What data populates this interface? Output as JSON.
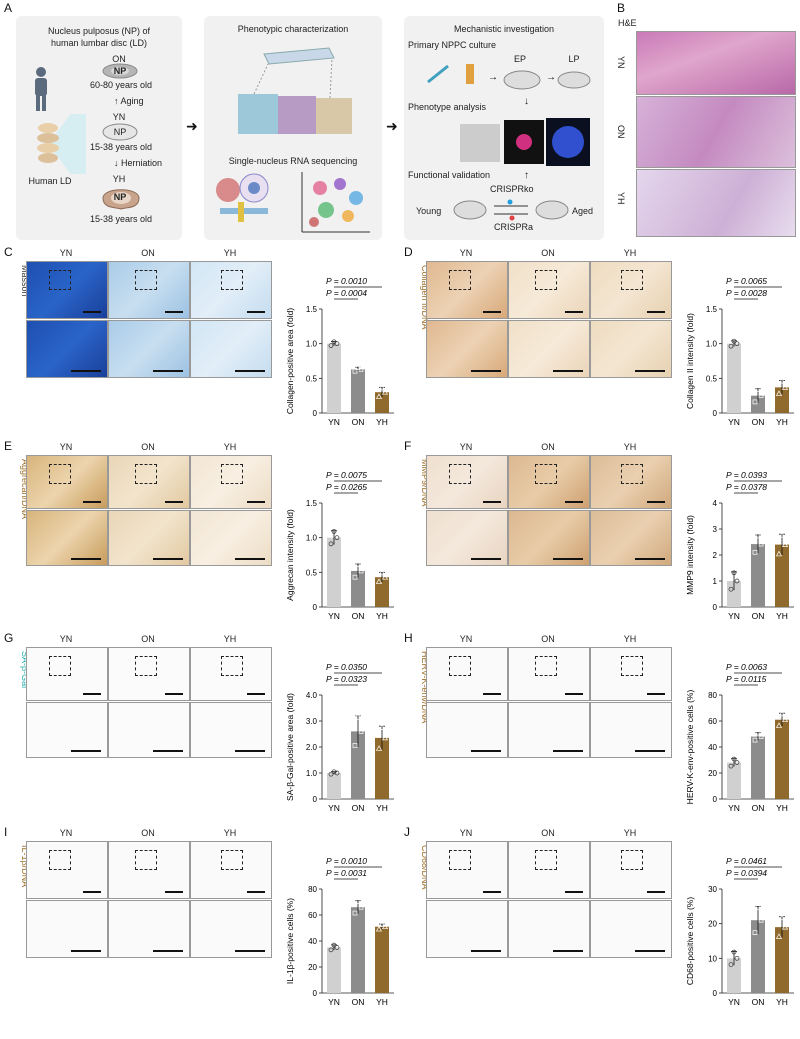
{
  "panel_letters": [
    "A",
    "B",
    "C",
    "D",
    "E",
    "F",
    "G",
    "H",
    "I",
    "J"
  ],
  "schema": {
    "box1_title": [
      "Nucleus pulposus (NP) of",
      "human lumbar disc (LD)"
    ],
    "human_ld": "Human LD",
    "on": "ON",
    "np": "NP",
    "yn": "YN",
    "yh": "YH",
    "aging": "Aging",
    "herniation": "Herniation",
    "age_old": "60-80 years old",
    "age_young": "15-38 years old",
    "box2_title": "Phenotypic characterization",
    "snrna": "Single-nucleus RNA sequencing",
    "box3_title": "Mechanistic investigation",
    "primary": "Primary NPPC culture",
    "ep": "EP",
    "lp": "LP",
    "phenotype": "Phenotype analysis",
    "functional": "Functional validation",
    "crisprko": "CRISPRko",
    "crispra": "CRISPRa",
    "young": "Young",
    "aged": "Aged"
  },
  "he": {
    "title": "H&E",
    "rows": [
      "YN",
      "ON",
      "YH"
    ]
  },
  "groups": [
    "YN",
    "ON",
    "YH"
  ],
  "panels": [
    {
      "id": "C",
      "stain": "Masson",
      "ylabel": "Collagen-positive area (fold)",
      "p1": "P = 0.0010",
      "p2": "P = 0.0004"
    },
    {
      "id": "D",
      "stain": "Collagen II/DNA",
      "ylabel": "Collagen II intensity (fold)",
      "p1": "P = 0.0065",
      "p2": "P = 0.0028"
    },
    {
      "id": "E",
      "stain": "Aggrecan/DNA",
      "ylabel": "Aggrecan intensity (fold)",
      "p1": "P = 0.0075",
      "p2": "P = 0.0265"
    },
    {
      "id": "F",
      "stain": "MMP9/DNA",
      "ylabel": "MMP9 intensity (fold)",
      "p1": "P = 0.0393",
      "p2": "P = 0.0378"
    },
    {
      "id": "G",
      "stain": "SA-β-Gal",
      "ylabel": "SA-β-Gal-positive area (fold)",
      "p1": "P = 0.0350",
      "p2": "P = 0.0323"
    },
    {
      "id": "H",
      "stain": "HERV-K-env/DNA",
      "ylabel": "HERV-K-env-positive cells (%)",
      "p1": "P = 0.0063",
      "p2": "P = 0.0115"
    },
    {
      "id": "I",
      "stain": "IL-1β/DNA",
      "ylabel": "IL-1β-positive cells (%)",
      "p1": "P = 0.0010",
      "p2": "P = 0.0031"
    },
    {
      "id": "J",
      "stain": "CD68/DNA",
      "ylabel": "CD68-positive cells (%)",
      "p1": "P = 0.0461",
      "p2": "P = 0.0394"
    }
  ],
  "chart_data": [
    {
      "type": "bar",
      "categories": [
        "YN",
        "ON",
        "YH"
      ],
      "values": [
        1.0,
        0.63,
        0.3
      ],
      "errors": [
        0.03,
        0.03,
        0.07
      ],
      "ylabel": "Collagen-positive area (fold)",
      "ylim": [
        0,
        1.5
      ],
      "yticks": [
        0,
        0.5,
        1.0,
        1.5
      ],
      "ytick_labels": [
        "0",
        "0.5",
        "1.0",
        "1.5"
      ],
      "colors": [
        "#d0d0d0",
        "#8c8c8c",
        "#8f6a2c"
      ]
    },
    {
      "type": "bar",
      "categories": [
        "YN",
        "ON",
        "YH"
      ],
      "values": [
        1.0,
        0.25,
        0.37
      ],
      "errors": [
        0.04,
        0.1,
        0.1
      ],
      "ylabel": "Collagen II intensity (fold)",
      "ylim": [
        0,
        1.5
      ],
      "yticks": [
        0,
        0.5,
        1.0,
        1.5
      ],
      "ytick_labels": [
        "0",
        "0.5",
        "1.0",
        "1.5"
      ],
      "colors": [
        "#d0d0d0",
        "#8c8c8c",
        "#8f6a2c"
      ]
    },
    {
      "type": "bar",
      "categories": [
        "YN",
        "ON",
        "YH"
      ],
      "values": [
        1.0,
        0.52,
        0.43
      ],
      "errors": [
        0.1,
        0.1,
        0.07
      ],
      "ylabel": "Aggrecan intensity (fold)",
      "ylim": [
        0,
        1.5
      ],
      "yticks": [
        0,
        0.5,
        1.0,
        1.5
      ],
      "ytick_labels": [
        "0",
        "0.5",
        "1.0",
        "1.5"
      ],
      "colors": [
        "#d0d0d0",
        "#8c8c8c",
        "#8f6a2c"
      ]
    },
    {
      "type": "bar",
      "categories": [
        "YN",
        "ON",
        "YH"
      ],
      "values": [
        1.0,
        2.42,
        2.4
      ],
      "errors": [
        0.35,
        0.35,
        0.4
      ],
      "ylabel": "MMP9 intensity (fold)",
      "ylim": [
        0,
        4
      ],
      "yticks": [
        0,
        1,
        2,
        3,
        4
      ],
      "ytick_labels": [
        "0",
        "1",
        "2",
        "3",
        "4"
      ],
      "colors": [
        "#d0d0d0",
        "#8c8c8c",
        "#8f6a2c"
      ]
    },
    {
      "type": "bar",
      "categories": [
        "YN",
        "ON",
        "YH"
      ],
      "values": [
        1.0,
        2.6,
        2.35
      ],
      "errors": [
        0.05,
        0.6,
        0.45
      ],
      "ylabel": "SA-β-Gal-positive area (fold)",
      "ylim": [
        0,
        4
      ],
      "yticks": [
        0,
        1,
        2,
        3,
        4
      ],
      "ytick_labels": [
        "0",
        "1.0",
        "2.0",
        "3.0",
        "4.0"
      ],
      "colors": [
        "#d0d0d0",
        "#8c8c8c",
        "#8f6a2c"
      ]
    },
    {
      "type": "bar",
      "categories": [
        "YN",
        "ON",
        "YH"
      ],
      "values": [
        28,
        48,
        61
      ],
      "errors": [
        3,
        3,
        5
      ],
      "ylabel": "HERV-K-env-positive cells (%)",
      "ylim": [
        0,
        80
      ],
      "yticks": [
        0,
        20,
        40,
        60,
        80
      ],
      "ytick_labels": [
        "0",
        "20",
        "40",
        "60",
        "80"
      ],
      "colors": [
        "#d0d0d0",
        "#8c8c8c",
        "#8f6a2c"
      ]
    },
    {
      "type": "bar",
      "categories": [
        "YN",
        "ON",
        "YH"
      ],
      "values": [
        35,
        66,
        51
      ],
      "errors": [
        2,
        5,
        2
      ],
      "ylabel": "IL-1β-positive cells (%)",
      "ylim": [
        0,
        80
      ],
      "yticks": [
        0,
        20,
        40,
        60,
        80
      ],
      "ytick_labels": [
        "0",
        "20",
        "40",
        "60",
        "80"
      ],
      "colors": [
        "#d0d0d0",
        "#8c8c8c",
        "#8f6a2c"
      ]
    },
    {
      "type": "bar",
      "categories": [
        "YN",
        "ON",
        "YH"
      ],
      "values": [
        10,
        21,
        19
      ],
      "errors": [
        2,
        4,
        3
      ],
      "ylabel": "CD68-positive cells (%)",
      "ylim": [
        0,
        30
      ],
      "yticks": [
        0,
        10,
        20,
        30
      ],
      "ytick_labels": [
        "0",
        "10",
        "20",
        "30"
      ],
      "colors": [
        "#d0d0d0",
        "#8c8c8c",
        "#8f6a2c"
      ]
    }
  ]
}
